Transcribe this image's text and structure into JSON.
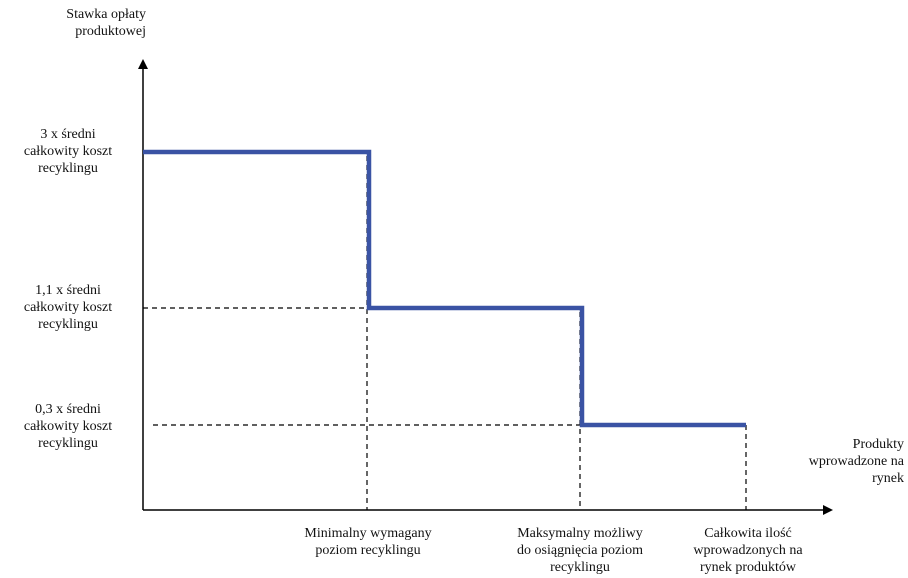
{
  "chart_data": {
    "type": "line",
    "step": true,
    "title": "",
    "ylabel": "Stawka opłaty\nproduktowej",
    "xlabel": "Produkty\nwprowadzone na\nrynek",
    "y_tick_labels": [
      "3 x średni\ncałkowity koszt\nrecyklingu",
      "1,1 x średni\ncałkowity koszt\nrecyklingu",
      "0,3 x średni\ncałkowity koszt\nrecyklingu"
    ],
    "x_tick_labels": [
      "Minimalny wymagany\npoziom recyklingu",
      "Maksymalny możliwy\ndo osiągnięcia poziom\nrecyklingu",
      "Całkowita ilość\nwprowadzonych na\nrynek produktów"
    ],
    "y_levels": [
      3,
      1.1,
      0.3
    ],
    "x_breaks": [
      1,
      2,
      3
    ],
    "series": [
      {
        "x": [
          0,
          1,
          1,
          2,
          2,
          3
        ],
        "y": [
          3,
          3,
          1.1,
          1.1,
          0.3,
          0.3
        ]
      }
    ],
    "grid": false,
    "reference_lines": "dashed",
    "colors": {
      "series": "#3a53a4",
      "axis": "#000000",
      "dashed": "#000000"
    }
  }
}
